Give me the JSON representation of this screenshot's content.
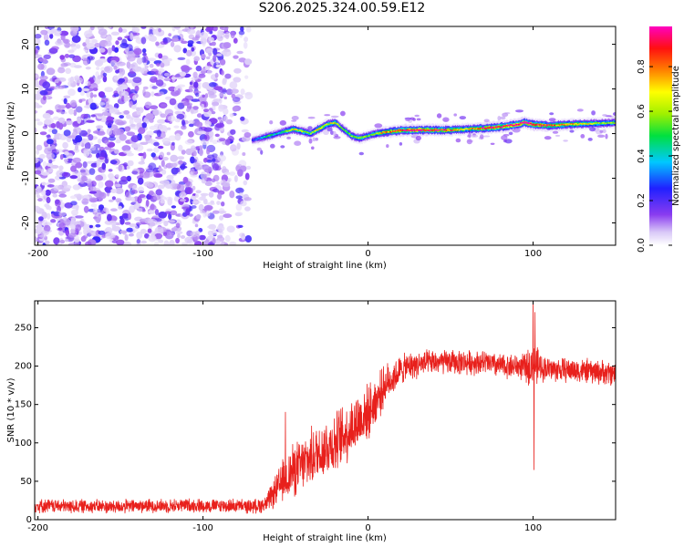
{
  "page": {
    "title": "S206.2025.324.00.59.E12"
  },
  "colors": {
    "noise_purple": "#8a3cf0",
    "snr_red": "#e8201c",
    "axis": "#000000"
  },
  "chart_data": [
    {
      "type": "heatmap",
      "title": "S206.2025.324.00.59.E12",
      "xlabel": "Height of straight line (km)",
      "ylabel": "Frequency (Hz)",
      "xlim": [
        -202,
        150
      ],
      "ylim": [
        -25,
        24
      ],
      "xticks": [
        -200,
        -100,
        0,
        100
      ],
      "yticks": [
        -20,
        -10,
        0,
        10,
        20
      ],
      "colorbar": {
        "label": "Normalized spectral amplitude",
        "range": [
          0.0,
          0.98
        ],
        "ticks": [
          0.0,
          0.2,
          0.4,
          0.6,
          0.8
        ],
        "tick_labels": [
          "0.0",
          "0.2",
          "0.4",
          "0.6",
          "0.8"
        ]
      },
      "noise_region_x": [
        -202,
        -72
      ],
      "ridge": {
        "x": [
          -70,
          -65,
          -60,
          -55,
          -50,
          -45,
          -40,
          -35,
          -30,
          -25,
          -20,
          -15,
          -10,
          -5,
          0,
          5,
          10,
          15,
          20,
          30,
          40,
          50,
          60,
          70,
          80,
          90,
          95,
          100,
          110,
          120,
          130,
          140,
          150
        ],
        "frequency": [
          -1.5,
          -1,
          -0.5,
          0,
          0.5,
          1,
          0.5,
          0,
          1,
          2,
          2.5,
          1,
          -0.5,
          -1,
          -0.5,
          0,
          0.3,
          0.5,
          0.7,
          0.8,
          0.8,
          0.8,
          1,
          1.2,
          1.5,
          2,
          2.5,
          2,
          1.8,
          2,
          2.2,
          2.3,
          2.5
        ],
        "amplitude": [
          0.25,
          0.3,
          0.45,
          0.35,
          0.5,
          0.6,
          0.55,
          0.5,
          0.65,
          0.55,
          0.6,
          0.45,
          0.5,
          0.55,
          0.45,
          0.55,
          0.7,
          0.75,
          0.8,
          0.85,
          0.8,
          0.75,
          0.6,
          0.8,
          0.85,
          0.9,
          0.8,
          0.85,
          0.75,
          0.7,
          0.6,
          0.55,
          0.5
        ]
      }
    },
    {
      "type": "line",
      "xlabel": "Height of straight line (km)",
      "ylabel": "SNR (10 * v/v)",
      "xlim": [
        -202,
        150
      ],
      "ylim": [
        0,
        285
      ],
      "xticks": [
        -200,
        -100,
        0,
        100
      ],
      "yticks": [
        0,
        50,
        100,
        150,
        200,
        250
      ],
      "series": [
        {
          "name": "SNR",
          "x": [
            -202,
            -190,
            -180,
            -170,
            -160,
            -150,
            -140,
            -130,
            -120,
            -110,
            -100,
            -90,
            -80,
            -70,
            -62,
            -55,
            -50,
            -45,
            -40,
            -35,
            -30,
            -25,
            -20,
            -15,
            -10,
            -5,
            0,
            5,
            10,
            15,
            20,
            25,
            30,
            40,
            50,
            60,
            70,
            80,
            90,
            95,
            98,
            100,
            102,
            105,
            110,
            120,
            130,
            140,
            150
          ],
          "mean": [
            18,
            18,
            17,
            18,
            17,
            17,
            18,
            18,
            18,
            19,
            18,
            18,
            18,
            17,
            20,
            40,
            55,
            65,
            70,
            80,
            88,
            95,
            100,
            110,
            120,
            130,
            140,
            155,
            175,
            185,
            195,
            200,
            202,
            205,
            205,
            205,
            205,
            200,
            200,
            198,
            200,
            200,
            200,
            198,
            196,
            195,
            194,
            192,
            190
          ],
          "noise": [
            10,
            10,
            10,
            10,
            10,
            10,
            10,
            10,
            10,
            10,
            10,
            10,
            10,
            10,
            12,
            25,
            35,
            40,
            40,
            42,
            42,
            45,
            45,
            45,
            45,
            45,
            40,
            35,
            30,
            25,
            22,
            20,
            20,
            18,
            18,
            18,
            18,
            18,
            18,
            20,
            30,
            30,
            30,
            20,
            18,
            18,
            18,
            18,
            18
          ],
          "spikes": [
            {
              "x": -50,
              "y": 140
            },
            {
              "x": 100,
              "y": 285
            },
            {
              "x": 100.6,
              "y": 65
            },
            {
              "x": 101.2,
              "y": 270
            }
          ]
        }
      ]
    }
  ]
}
